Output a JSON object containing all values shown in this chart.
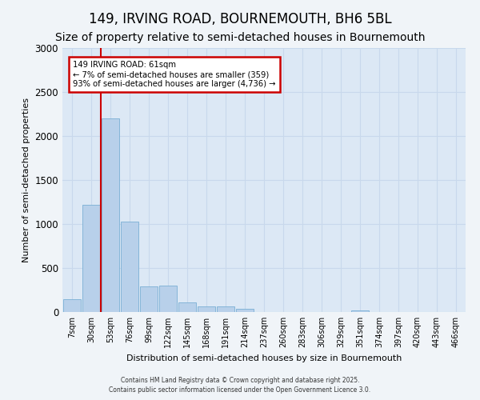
{
  "title": "149, IRVING ROAD, BOURNEMOUTH, BH6 5BL",
  "subtitle": "Size of property relative to semi-detached houses in Bournemouth",
  "xlabel": "Distribution of semi-detached houses by size in Bournemouth",
  "ylabel": "Number of semi-detached properties",
  "bar_labels": [
    "7sqm",
    "30sqm",
    "53sqm",
    "76sqm",
    "99sqm",
    "122sqm",
    "145sqm",
    "168sqm",
    "191sqm",
    "214sqm",
    "237sqm",
    "260sqm",
    "283sqm",
    "306sqm",
    "329sqm",
    "351sqm",
    "374sqm",
    "397sqm",
    "420sqm",
    "443sqm",
    "466sqm"
  ],
  "bar_values": [
    150,
    1220,
    2200,
    1030,
    290,
    300,
    110,
    60,
    60,
    35,
    0,
    0,
    0,
    0,
    0,
    20,
    0,
    0,
    0,
    0,
    0
  ],
  "bar_color": "#b8d0ea",
  "bar_edgecolor": "#7aafd4",
  "vline_x": 2.0,
  "annotation_title": "149 IRVING ROAD: 61sqm",
  "annotation_line1": "← 7% of semi-detached houses are smaller (359)",
  "annotation_line2": "93% of semi-detached houses are larger (4,736) →",
  "annotation_box_color": "#ffffff",
  "annotation_border_color": "#cc0000",
  "vline_color": "#cc0000",
  "ylim": [
    0,
    3000
  ],
  "yticks": [
    0,
    500,
    1000,
    1500,
    2000,
    2500,
    3000
  ],
  "grid_color": "#c8d8ec",
  "background_color": "#dce8f5",
  "fig_background": "#f0f4f8",
  "title_fontsize": 12,
  "subtitle_fontsize": 10,
  "footer_line1": "Contains HM Land Registry data © Crown copyright and database right 2025.",
  "footer_line2": "Contains public sector information licensed under the Open Government Licence 3.0."
}
